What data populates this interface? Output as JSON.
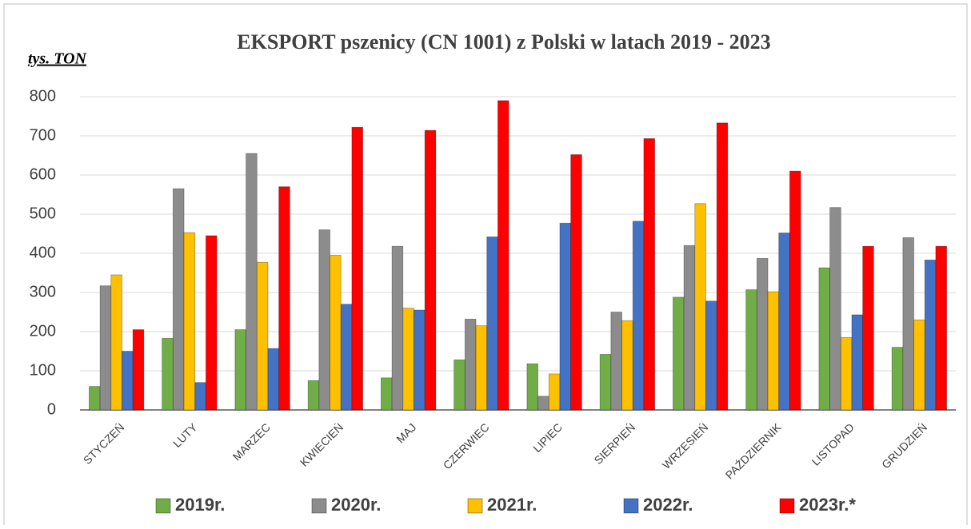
{
  "chart_data": {
    "type": "bar",
    "title": "EKSPORT pszenicy (CN 1001) z Polski w latach 2019 - 2023",
    "y_label": "tys. TON",
    "categories": [
      "STYCZEŃ",
      "LUTY",
      "MARZEC",
      "KWIECIEŃ",
      "MAJ",
      "CZERWIEC",
      "LIPIEC",
      "SIERPIEŃ",
      "WRZESIEŃ",
      "PAŹDZIERNIK",
      "LISTOPAD",
      "GRUDZIEŃ"
    ],
    "series": [
      {
        "name": "2019r.",
        "color": "#70ad47",
        "values": [
          60,
          183,
          205,
          75,
          82,
          128,
          118,
          142,
          288,
          307,
          363,
          160
        ]
      },
      {
        "name": "2020r.",
        "color": "#8c8c8c",
        "values": [
          317,
          565,
          655,
          460,
          418,
          232,
          35,
          250,
          420,
          387,
          517,
          440
        ]
      },
      {
        "name": "2021r.",
        "color": "#ffc000",
        "values": [
          345,
          453,
          377,
          395,
          260,
          215,
          92,
          228,
          527,
          302,
          185,
          230
        ]
      },
      {
        "name": "2022r.",
        "color": "#4472c4",
        "values": [
          150,
          70,
          157,
          270,
          255,
          442,
          477,
          482,
          278,
          452,
          243,
          383
        ]
      },
      {
        "name": "2023r.*",
        "color": "#ff0000",
        "values": [
          205,
          445,
          570,
          722,
          714,
          790,
          652,
          693,
          733,
          610,
          418,
          418
        ]
      }
    ],
    "ylim": [
      0,
      800
    ],
    "yticks": [
      0,
      100,
      200,
      300,
      400,
      500,
      600,
      700,
      800
    ],
    "grid": true,
    "legend": "bottom"
  }
}
